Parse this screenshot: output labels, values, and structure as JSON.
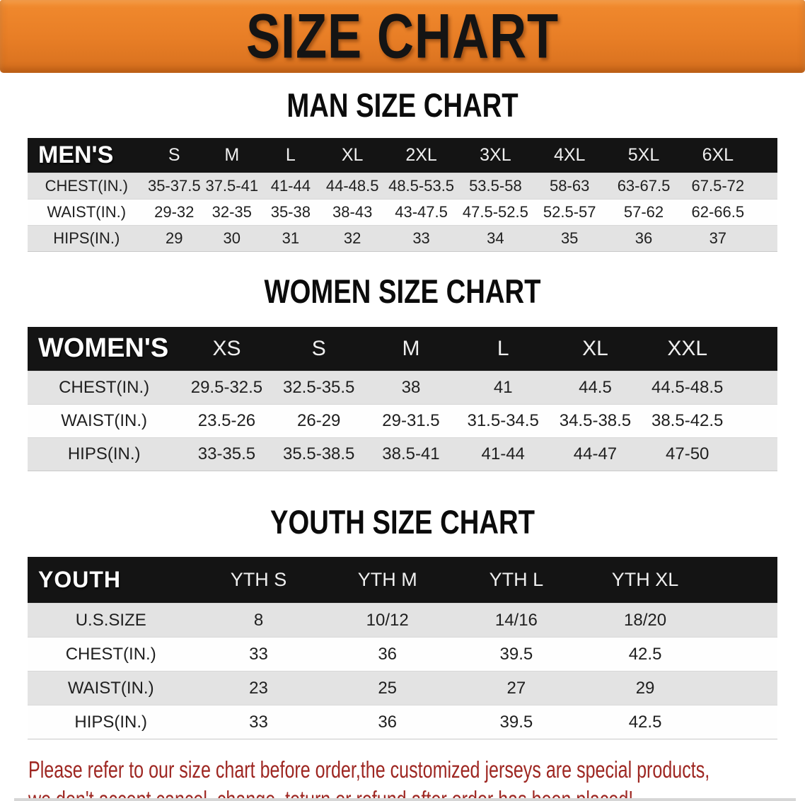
{
  "banner": {
    "title": "SIZE CHART",
    "bg_color": "#E87E26",
    "text_color": "#141414"
  },
  "sections": [
    {
      "id": "men",
      "heading": "MAN SIZE CHART",
      "table": {
        "header": [
          "MEN'S",
          "S",
          "M",
          "L",
          "XL",
          "2XL",
          "3XL",
          "4XL",
          "5XL",
          "6XL"
        ],
        "rows": [
          [
            "CHEST(IN.)",
            "35-37.5",
            "37.5-41",
            "41-44",
            "44-48.5",
            "48.5-53.5",
            "53.5-58",
            "58-63",
            "63-67.5",
            "67.5-72"
          ],
          [
            "WAIST(IN.)",
            "29-32",
            "32-35",
            "35-38",
            "38-43",
            "43-47.5",
            "47.5-52.5",
            "52.5-57",
            "57-62",
            "62-66.5"
          ],
          [
            "HIPS(IN.)",
            "29",
            "30",
            "31",
            "32",
            "33",
            "34",
            "35",
            "36",
            "37"
          ]
        ]
      }
    },
    {
      "id": "women",
      "heading": "WOMEN SIZE CHART",
      "table": {
        "header": [
          "WOMEN'S",
          "XS",
          "S",
          "M",
          "L",
          "XL",
          "XXL"
        ],
        "rows": [
          [
            "CHEST(IN.)",
            "29.5-32.5",
            "32.5-35.5",
            "38",
            "41",
            "44.5",
            "44.5-48.5"
          ],
          [
            "WAIST(IN.)",
            "23.5-26",
            "26-29",
            "29-31.5",
            "31.5-34.5",
            "34.5-38.5",
            "38.5-42.5"
          ],
          [
            "HIPS(IN.)",
            "33-35.5",
            "35.5-38.5",
            "38.5-41",
            "41-44",
            "44-47",
            "47-50"
          ]
        ]
      }
    },
    {
      "id": "youth",
      "heading": "YOUTH SIZE CHART",
      "table": {
        "header": [
          "YOUTH",
          "YTH S",
          "YTH M",
          "YTH L",
          "YTH XL"
        ],
        "rows": [
          [
            "U.S.SIZE",
            "8",
            "10/12",
            "14/16",
            "18/20"
          ],
          [
            "CHEST(IN.)",
            "33",
            "36",
            "39.5",
            "42.5"
          ],
          [
            "WAIST(IN.)",
            "23",
            "25",
            "27",
            "29"
          ],
          [
            "HIPS(IN.)",
            "33",
            "36",
            "39.5",
            "42.5"
          ]
        ]
      }
    }
  ],
  "disclaimer": {
    "line1": "Please refer to our size chart before order,the customized jerseys are special products,",
    "line2": "we don't accept cancel, change, teturn or refund after order has been placed!",
    "color": "#9E2722"
  },
  "table_style": {
    "header_bg": "#141414",
    "stripe_bg": "#E3E3E3"
  }
}
